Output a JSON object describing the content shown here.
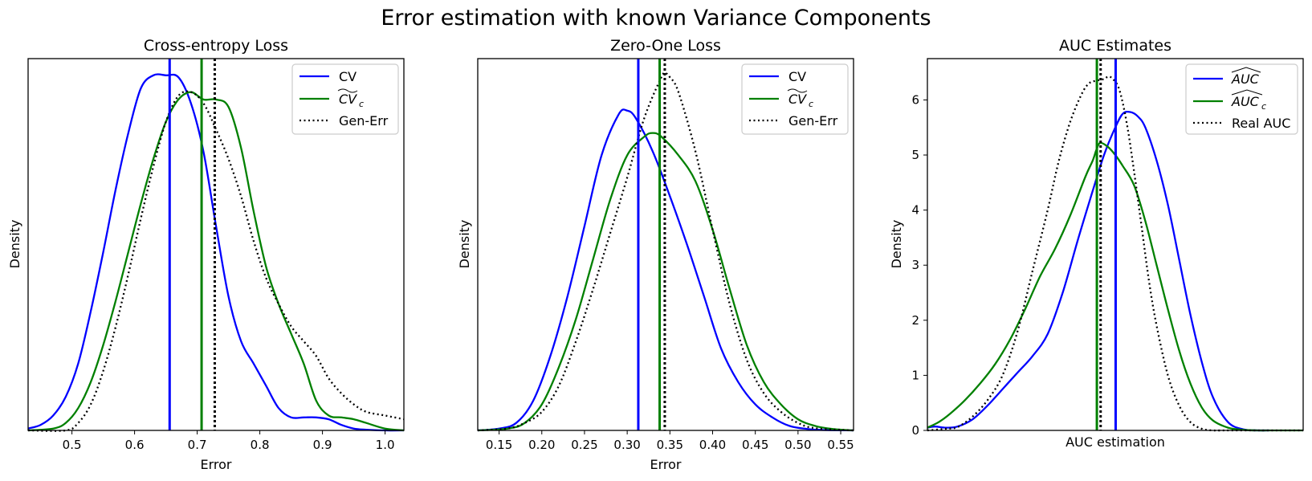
{
  "suptitle": "Error estimation with known Variance Components",
  "colors": {
    "cv": "#0000ff",
    "cvc": "#008000",
    "gen": "#000000",
    "frame": "#000000",
    "background": "#ffffff"
  },
  "chart_data": [
    {
      "type": "line",
      "title": "Cross-entropy Loss",
      "xlabel": "Error",
      "ylabel": "Density",
      "xlim": [
        0.43,
        1.03
      ],
      "ylim": [
        0,
        1.0
      ],
      "xticks": [
        0.5,
        0.6,
        0.7,
        0.8,
        0.9,
        1.0
      ],
      "xtick_labels": [
        "0.5",
        "0.6",
        "0.7",
        "0.8",
        "0.9",
        "1.0"
      ],
      "yticks": [],
      "ytick_labels": [],
      "legend_loc": "upper right",
      "legend": [
        "CV",
        "CV_c",
        "Gen-Err"
      ],
      "vlines": [
        {
          "series": "CV",
          "x": 0.656
        },
        {
          "series": "CV_c",
          "x": 0.707
        },
        {
          "series": "Gen-Err",
          "x": 0.728
        }
      ],
      "series": [
        {
          "name": "CV",
          "style": "solid",
          "x": [
            0.43,
            0.45,
            0.47,
            0.49,
            0.51,
            0.53,
            0.55,
            0.57,
            0.59,
            0.61,
            0.63,
            0.65,
            0.67,
            0.69,
            0.71,
            0.73,
            0.75,
            0.77,
            0.79,
            0.81,
            0.83,
            0.85,
            0.87,
            0.89,
            0.91,
            0.93,
            0.95,
            0.97,
            1.0,
            1.03
          ],
          "y": [
            0.005,
            0.015,
            0.04,
            0.09,
            0.18,
            0.32,
            0.48,
            0.65,
            0.8,
            0.92,
            0.955,
            0.955,
            0.95,
            0.88,
            0.75,
            0.55,
            0.36,
            0.24,
            0.18,
            0.12,
            0.06,
            0.035,
            0.035,
            0.035,
            0.03,
            0.015,
            0.005,
            0.002,
            0.0,
            0.0
          ]
        },
        {
          "name": "CV_c",
          "style": "solid",
          "x": [
            0.43,
            0.47,
            0.49,
            0.51,
            0.53,
            0.55,
            0.57,
            0.59,
            0.61,
            0.63,
            0.65,
            0.67,
            0.69,
            0.71,
            0.73,
            0.75,
            0.77,
            0.79,
            0.81,
            0.83,
            0.85,
            0.87,
            0.89,
            0.91,
            0.93,
            0.95,
            0.97,
            1.0,
            1.03
          ],
          "y": [
            0.0,
            0.005,
            0.02,
            0.06,
            0.13,
            0.23,
            0.35,
            0.48,
            0.61,
            0.73,
            0.83,
            0.89,
            0.91,
            0.89,
            0.89,
            0.87,
            0.76,
            0.59,
            0.44,
            0.34,
            0.26,
            0.18,
            0.08,
            0.04,
            0.035,
            0.03,
            0.02,
            0.005,
            0.0
          ]
        },
        {
          "name": "Gen-Err",
          "style": "dotted",
          "x": [
            0.43,
            0.49,
            0.51,
            0.53,
            0.55,
            0.57,
            0.59,
            0.61,
            0.63,
            0.65,
            0.67,
            0.69,
            0.71,
            0.73,
            0.75,
            0.77,
            0.79,
            0.81,
            0.83,
            0.85,
            0.87,
            0.89,
            0.91,
            0.93,
            0.95,
            0.97,
            1.0,
            1.03
          ],
          "y": [
            0.0,
            0.0,
            0.02,
            0.07,
            0.16,
            0.28,
            0.42,
            0.57,
            0.71,
            0.83,
            0.9,
            0.91,
            0.88,
            0.81,
            0.73,
            0.63,
            0.51,
            0.41,
            0.34,
            0.28,
            0.24,
            0.2,
            0.14,
            0.1,
            0.07,
            0.05,
            0.04,
            0.03
          ]
        }
      ]
    },
    {
      "type": "line",
      "title": "Zero-One Loss",
      "xlabel": "Error",
      "ylabel": "Density",
      "xlim": [
        0.125,
        0.565
      ],
      "ylim": [
        0,
        1.0
      ],
      "xticks": [
        0.15,
        0.2,
        0.25,
        0.3,
        0.35,
        0.4,
        0.45,
        0.5,
        0.55
      ],
      "xtick_labels": [
        "0.15",
        "0.20",
        "0.25",
        "0.30",
        "0.35",
        "0.40",
        "0.45",
        "0.50",
        "0.55"
      ],
      "yticks": [],
      "ytick_labels": [],
      "legend_loc": "upper right",
      "legend": [
        "CV",
        "CV_c",
        "Gen-Err"
      ],
      "vlines": [
        {
          "series": "CV",
          "x": 0.313
        },
        {
          "series": "CV_c",
          "x": 0.338
        },
        {
          "series": "Gen-Err",
          "x": 0.344
        }
      ],
      "series": [
        {
          "name": "CV",
          "style": "solid",
          "x": [
            0.125,
            0.15,
            0.17,
            0.19,
            0.21,
            0.23,
            0.25,
            0.27,
            0.29,
            0.3,
            0.31,
            0.33,
            0.35,
            0.37,
            0.39,
            0.41,
            0.43,
            0.45,
            0.47,
            0.49,
            0.51,
            0.53,
            0.565
          ],
          "y": [
            0.0,
            0.005,
            0.02,
            0.08,
            0.2,
            0.36,
            0.55,
            0.74,
            0.85,
            0.86,
            0.84,
            0.75,
            0.63,
            0.5,
            0.36,
            0.22,
            0.13,
            0.07,
            0.035,
            0.012,
            0.004,
            0.001,
            0.0
          ]
        },
        {
          "name": "CV_c",
          "style": "solid",
          "x": [
            0.125,
            0.16,
            0.18,
            0.2,
            0.22,
            0.24,
            0.26,
            0.28,
            0.3,
            0.32,
            0.33,
            0.34,
            0.36,
            0.38,
            0.4,
            0.42,
            0.44,
            0.46,
            0.48,
            0.5,
            0.52,
            0.54,
            0.565
          ],
          "y": [
            0.0,
            0.005,
            0.02,
            0.07,
            0.17,
            0.3,
            0.46,
            0.62,
            0.74,
            0.79,
            0.8,
            0.79,
            0.74,
            0.67,
            0.54,
            0.38,
            0.23,
            0.13,
            0.07,
            0.03,
            0.012,
            0.004,
            0.0
          ]
        },
        {
          "name": "Gen-Err",
          "style": "dotted",
          "x": [
            0.125,
            0.16,
            0.18,
            0.2,
            0.22,
            0.24,
            0.26,
            0.28,
            0.3,
            0.32,
            0.34,
            0.345,
            0.35,
            0.36,
            0.38,
            0.4,
            0.42,
            0.44,
            0.46,
            0.48,
            0.5,
            0.52,
            0.565
          ],
          "y": [
            0.0,
            0.005,
            0.02,
            0.05,
            0.12,
            0.24,
            0.38,
            0.53,
            0.68,
            0.84,
            0.95,
            0.96,
            0.95,
            0.91,
            0.75,
            0.54,
            0.34,
            0.19,
            0.1,
            0.05,
            0.02,
            0.006,
            0.0
          ]
        }
      ]
    },
    {
      "type": "line",
      "title": "AUC Estimates",
      "xlabel": "AUC estimation",
      "ylabel": "Density",
      "xlim": [
        0,
        100
      ],
      "ylim": [
        0,
        6.75
      ],
      "xticks": [],
      "xtick_labels": [],
      "yticks": [
        0,
        1,
        2,
        3,
        4,
        5,
        6
      ],
      "ytick_labels": [
        "0",
        "1",
        "2",
        "3",
        "4",
        "5",
        "6"
      ],
      "legend_loc": "upper right",
      "legend": [
        "AUC",
        "AUC_c",
        "Real AUC"
      ],
      "vlines": [
        {
          "series": "AUC",
          "x": 50.1
        },
        {
          "series": "AUC_c",
          "x": 45.1
        },
        {
          "series": "Real AUC",
          "x": 46.1
        }
      ],
      "series": [
        {
          "name": "AUC",
          "style": "solid",
          "x": [
            0,
            2,
            5,
            8,
            12,
            16,
            20,
            24,
            28,
            32,
            36,
            40,
            44,
            47,
            50,
            52,
            54,
            56,
            58,
            61,
            64,
            67,
            70,
            73,
            76,
            80,
            84,
            88,
            91
          ],
          "y": [
            0.05,
            0.07,
            0.05,
            0.07,
            0.2,
            0.45,
            0.75,
            1.05,
            1.35,
            1.75,
            2.5,
            3.45,
            4.35,
            5.0,
            5.5,
            5.75,
            5.78,
            5.7,
            5.5,
            4.9,
            4.1,
            3.1,
            2.1,
            1.25,
            0.6,
            0.15,
            0.02,
            0.0,
            0.0
          ]
        },
        {
          "name": "AUC_c",
          "style": "solid",
          "x": [
            0,
            3,
            6,
            10,
            14,
            18,
            22,
            26,
            30,
            34,
            38,
            42,
            44,
            45,
            46,
            48,
            50,
            52,
            55,
            58,
            61,
            64,
            67,
            70,
            73,
            76,
            80,
            84,
            88,
            92,
            100
          ],
          "y": [
            0.05,
            0.15,
            0.3,
            0.55,
            0.85,
            1.2,
            1.65,
            2.2,
            2.8,
            3.3,
            3.9,
            4.6,
            4.9,
            5.1,
            5.22,
            5.15,
            5.0,
            4.8,
            4.45,
            3.8,
            3.0,
            2.2,
            1.45,
            0.85,
            0.42,
            0.18,
            0.05,
            0.01,
            0.0,
            0.0,
            0.0
          ]
        },
        {
          "name": "Real AUC",
          "style": "dotted",
          "x": [
            0,
            5,
            8,
            12,
            16,
            20,
            24,
            28,
            32,
            35,
            38,
            41,
            43,
            45,
            47,
            48,
            49,
            51,
            53,
            55,
            57,
            59,
            61,
            64,
            67,
            70,
            73,
            76,
            80,
            100
          ],
          "y": [
            0.0,
            0.03,
            0.06,
            0.25,
            0.55,
            1.0,
            1.8,
            2.9,
            4.0,
            4.9,
            5.6,
            6.1,
            6.3,
            6.35,
            6.38,
            6.42,
            6.4,
            6.2,
            5.6,
            4.7,
            3.7,
            2.7,
            1.9,
            1.0,
            0.45,
            0.15,
            0.03,
            0.0,
            0.0,
            0.0
          ]
        }
      ]
    }
  ]
}
